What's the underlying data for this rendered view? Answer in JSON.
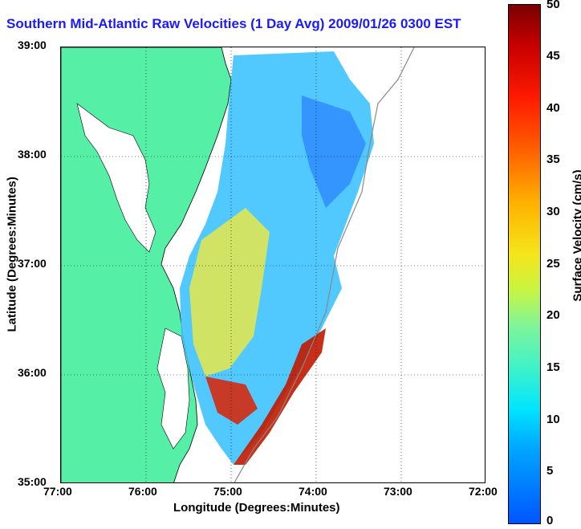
{
  "title": "Southern Mid-Atlantic Raw Velocities (1 Day Avg) 2009/01/26 0300 EST",
  "axes": {
    "xlabel": "Longitude (Degrees:Minutes)",
    "ylabel": "Latitude (Degrees:Minutes)",
    "xticks": [
      "77:00",
      "76:00",
      "75:00",
      "74:00",
      "73:00",
      "72:00"
    ],
    "yticks": [
      "39:00",
      "38:00",
      "37:00",
      "36:00",
      "35:00"
    ]
  },
  "colorbar": {
    "label": "Surface Velocity (cm/s)",
    "ticks": [
      "50",
      "45",
      "40",
      "35",
      "30",
      "25",
      "20",
      "15",
      "10",
      "5",
      "0"
    ]
  },
  "colors": {
    "land": "#55f0a6",
    "title": "#1a1aff"
  }
}
